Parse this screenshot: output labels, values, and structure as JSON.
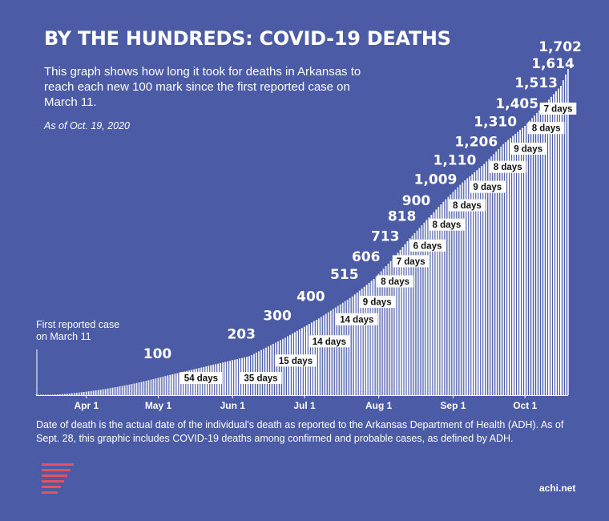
{
  "header": {
    "title": "BY THE HUNDREDS: COVID-19 DEATHS",
    "subtitle": "This graph shows how long it took for deaths in Arkansas to reach each new 100 mark since the first reported case on March 11.",
    "as_of": "As of Oct. 19, 2020"
  },
  "chart_data": {
    "type": "bar",
    "annotation": "First reported case on March 11",
    "x_ticks": [
      "Apr 1",
      "May 1",
      "Jun 1",
      "Jul 1",
      "Aug 1",
      "Sep 1",
      "Oct 1"
    ],
    "x_tick_dates": [
      "2020-04-01",
      "2020-05-01",
      "2020-06-01",
      "2020-07-01",
      "2020-08-01",
      "2020-09-01",
      "2020-10-01"
    ],
    "x_range": [
      "2020-03-11",
      "2020-10-19"
    ],
    "ylim": [
      0,
      1702
    ],
    "grid": false,
    "series_color": "#ffffff",
    "milestones": [
      {
        "value": 100,
        "date": "2020-05-04",
        "days": "54 days"
      },
      {
        "value": 203,
        "date": "2020-06-08",
        "days": "35 days"
      },
      {
        "value": 300,
        "date": "2020-06-23",
        "days": "15 days"
      },
      {
        "value": 400,
        "date": "2020-07-07",
        "days": "14 days"
      },
      {
        "value": 515,
        "date": "2020-07-21",
        "days": "14 days"
      },
      {
        "value": 606,
        "date": "2020-07-30",
        "days": "9 days"
      },
      {
        "value": 713,
        "date": "2020-08-07",
        "days": "8 days"
      },
      {
        "value": 818,
        "date": "2020-08-14",
        "days": "7 days"
      },
      {
        "value": 900,
        "date": "2020-08-20",
        "days": "6 days"
      },
      {
        "value": 1009,
        "date": "2020-08-28",
        "days": "8 days"
      },
      {
        "value": 1110,
        "date": "2020-09-05",
        "days": "8 days"
      },
      {
        "value": 1206,
        "date": "2020-09-14",
        "days": "9 days"
      },
      {
        "value": 1310,
        "date": "2020-09-22",
        "days": "8 days"
      },
      {
        "value": 1405,
        "date": "2020-10-01",
        "days": "9 days"
      },
      {
        "value": 1513,
        "date": "2020-10-09",
        "days": "8 days"
      },
      {
        "value": 1614,
        "date": "2020-10-16",
        "days": "7 days"
      },
      {
        "value": 1702,
        "date": "2020-10-19",
        "days": ""
      }
    ]
  },
  "footer": {
    "note": "Date of death is the actual date of the individual's death as reported to the Arkansas Department of Health (ADH). As of Sept. 28, this graphic includes COVID-19 deaths among confirmed and probable cases, as defined by ADH.",
    "source": "achi.net"
  }
}
